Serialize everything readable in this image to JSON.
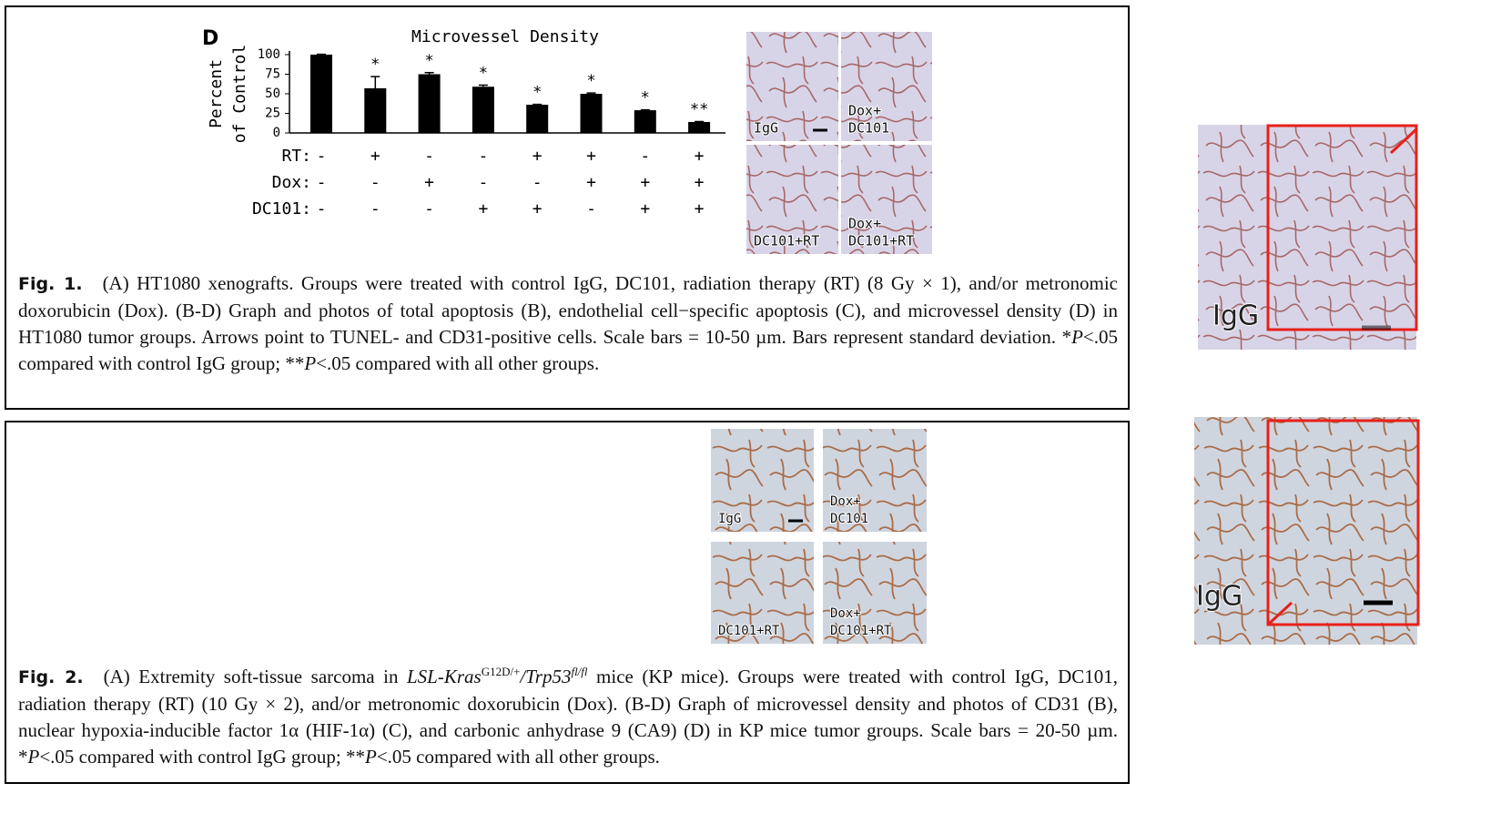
{
  "figure1": {
    "panel_label": "D",
    "chart": {
      "type": "bar",
      "title": "Microvessel Density",
      "y_label": [
        "Percent",
        "of Control"
      ],
      "values": [
        100,
        57,
        75,
        59,
        36,
        50,
        29,
        14
      ],
      "errors": [
        0.5,
        15,
        2,
        2,
        0.5,
        1,
        0.5,
        0.5
      ],
      "significance": [
        null,
        "*",
        "*",
        "*",
        "*",
        "*",
        "*",
        "**"
      ],
      "color": "#000000",
      "ylim": [
        0,
        100
      ],
      "yticks": [
        0,
        25,
        50,
        75,
        100
      ],
      "treatments": [
        {
          "name": "RT:",
          "signs": [
            "-",
            "+",
            "-",
            "-",
            "+",
            "+",
            "-",
            "+"
          ]
        },
        {
          "name": "Dox:",
          "signs": [
            "-",
            "-",
            "+",
            "-",
            "-",
            "+",
            "+",
            "+"
          ]
        },
        {
          "name": "DC101:",
          "signs": [
            "-",
            "-",
            "-",
            "+",
            "+",
            "-",
            "+",
            "+"
          ]
        }
      ]
    },
    "photo_labels": [
      [
        "IgG"
      ],
      [
        "Dox+",
        "DC101"
      ],
      [
        "DC101+RT"
      ],
      [
        "Dox+",
        "DC101+RT"
      ]
    ],
    "caption": {
      "label": "Fig. 1.",
      "parts": [
        "(A) HT1080 xenografts. Groups were treated with control IgG, DC101, radiation therapy (RT) (8 Gy × 1), and/or metronomic doxorubicin (Dox). (B-D) Graph and photos of total apoptosis (B), endothelial cell−specific apoptosis (C), and microvessel density (D) in HT1080 tumor groups. Arrows point to TUNEL- and CD31-positive cells. Scale bars = 10-50 µm. Bars represent standard deviation. *",
        "P",
        "<.05 compared with control IgG group; **",
        "P",
        "<.05 compared with all other groups."
      ]
    }
  },
  "figure2": {
    "photo_labels": [
      [
        "IgG"
      ],
      [
        "Dox+",
        "DC101"
      ],
      [
        "DC101+RT"
      ],
      [
        "Dox+",
        "DC101+RT"
      ]
    ],
    "caption": {
      "label": "Fig. 2.",
      "parts": [
        "(A) Extremity soft-tissue sarcoma in ",
        "LSL-Kras",
        "G12D/+",
        "/Trp53",
        "fl/fl",
        " mice (KP mice). Groups were treated with control IgG, DC101, radiation therapy (RT) (10 Gy × 2), and/or metronomic doxorubicin (Dox). (B-D) Graph of microvessel density and photos of CD31 (B), nuclear hypoxia-inducible factor 1α (HIF-1α) (C), and carbonic anhydrase 9 (CA9) (D) in KP mice tumor groups. Scale bars = 20-50 µm. *",
        "P",
        "<.05 compared with control IgG group; **",
        "P",
        "<.05 compared with all other groups."
      ]
    }
  },
  "zoom_labels": [
    "IgG",
    "IgG"
  ]
}
